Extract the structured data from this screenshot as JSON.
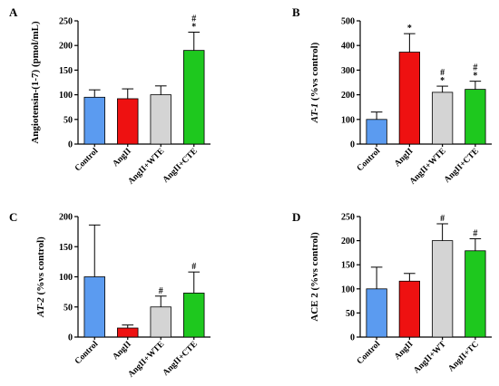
{
  "chart_data": [
    {
      "type": "bar",
      "panel": "A",
      "ylabel": "Angiotensin-(1-7) (pmol/mL)",
      "ylim": [
        0,
        250
      ],
      "yticks": [
        0,
        50,
        100,
        150,
        200,
        250
      ],
      "categories": [
        "Control",
        "AngII",
        "AngII+WTE",
        "AngII+CTE"
      ],
      "values": [
        95,
        92,
        100,
        190
      ],
      "errors": [
        15,
        20,
        18,
        37
      ],
      "colors": [
        "#5b9bf0",
        "#ee1111",
        "#d4d4d4",
        "#1ec81e"
      ],
      "annotations": [
        [],
        [],
        [],
        [
          "#",
          "*"
        ]
      ]
    },
    {
      "type": "bar",
      "panel": "B",
      "ylabel": "AT-1 (%vs control)",
      "ylabel_italic": "AT-1",
      "ylabel_rest": " (%vs control)",
      "ylim": [
        0,
        500
      ],
      "yticks": [
        0,
        100,
        200,
        300,
        400,
        500
      ],
      "categories": [
        "Control",
        "AngII",
        "AngII+WTE",
        "AngII+CTE"
      ],
      "values": [
        100,
        373,
        210,
        222
      ],
      "errors": [
        30,
        75,
        25,
        33
      ],
      "colors": [
        "#5b9bf0",
        "#ee1111",
        "#d4d4d4",
        "#1ec81e"
      ],
      "annotations": [
        [],
        [
          "*"
        ],
        [
          "#",
          "*"
        ],
        [
          "#",
          "*"
        ]
      ]
    },
    {
      "type": "bar",
      "panel": "C",
      "ylabel": "AT-2 (%vs control)",
      "ylabel_italic": "AT-2",
      "ylabel_rest": " (%vs control)",
      "ylim": [
        0,
        200
      ],
      "yticks": [
        0,
        50,
        100,
        150,
        200
      ],
      "categories": [
        "Control",
        "AngII",
        "AngII+WTE",
        "AngII+CTE"
      ],
      "values": [
        100,
        15,
        50,
        73
      ],
      "errors": [
        86,
        5,
        18,
        35
      ],
      "colors": [
        "#5b9bf0",
        "#ee1111",
        "#d4d4d4",
        "#1ec81e"
      ],
      "annotations": [
        [],
        [],
        [
          "#"
        ],
        [
          "#"
        ]
      ]
    },
    {
      "type": "bar",
      "panel": "D",
      "ylabel": "ACE 2 (%vs control)",
      "ylim": [
        0,
        250
      ],
      "yticks": [
        0,
        50,
        100,
        150,
        200,
        250
      ],
      "categories": [
        "Control",
        "AngII",
        "AngII+WT",
        "AngII+TC"
      ],
      "values": [
        100,
        116,
        200,
        179
      ],
      "errors": [
        45,
        16,
        35,
        25
      ],
      "colors": [
        "#5b9bf0",
        "#ee1111",
        "#d4d4d4",
        "#1ec81e"
      ],
      "annotations": [
        [],
        [],
        [
          "#"
        ],
        [
          "#"
        ]
      ]
    }
  ]
}
